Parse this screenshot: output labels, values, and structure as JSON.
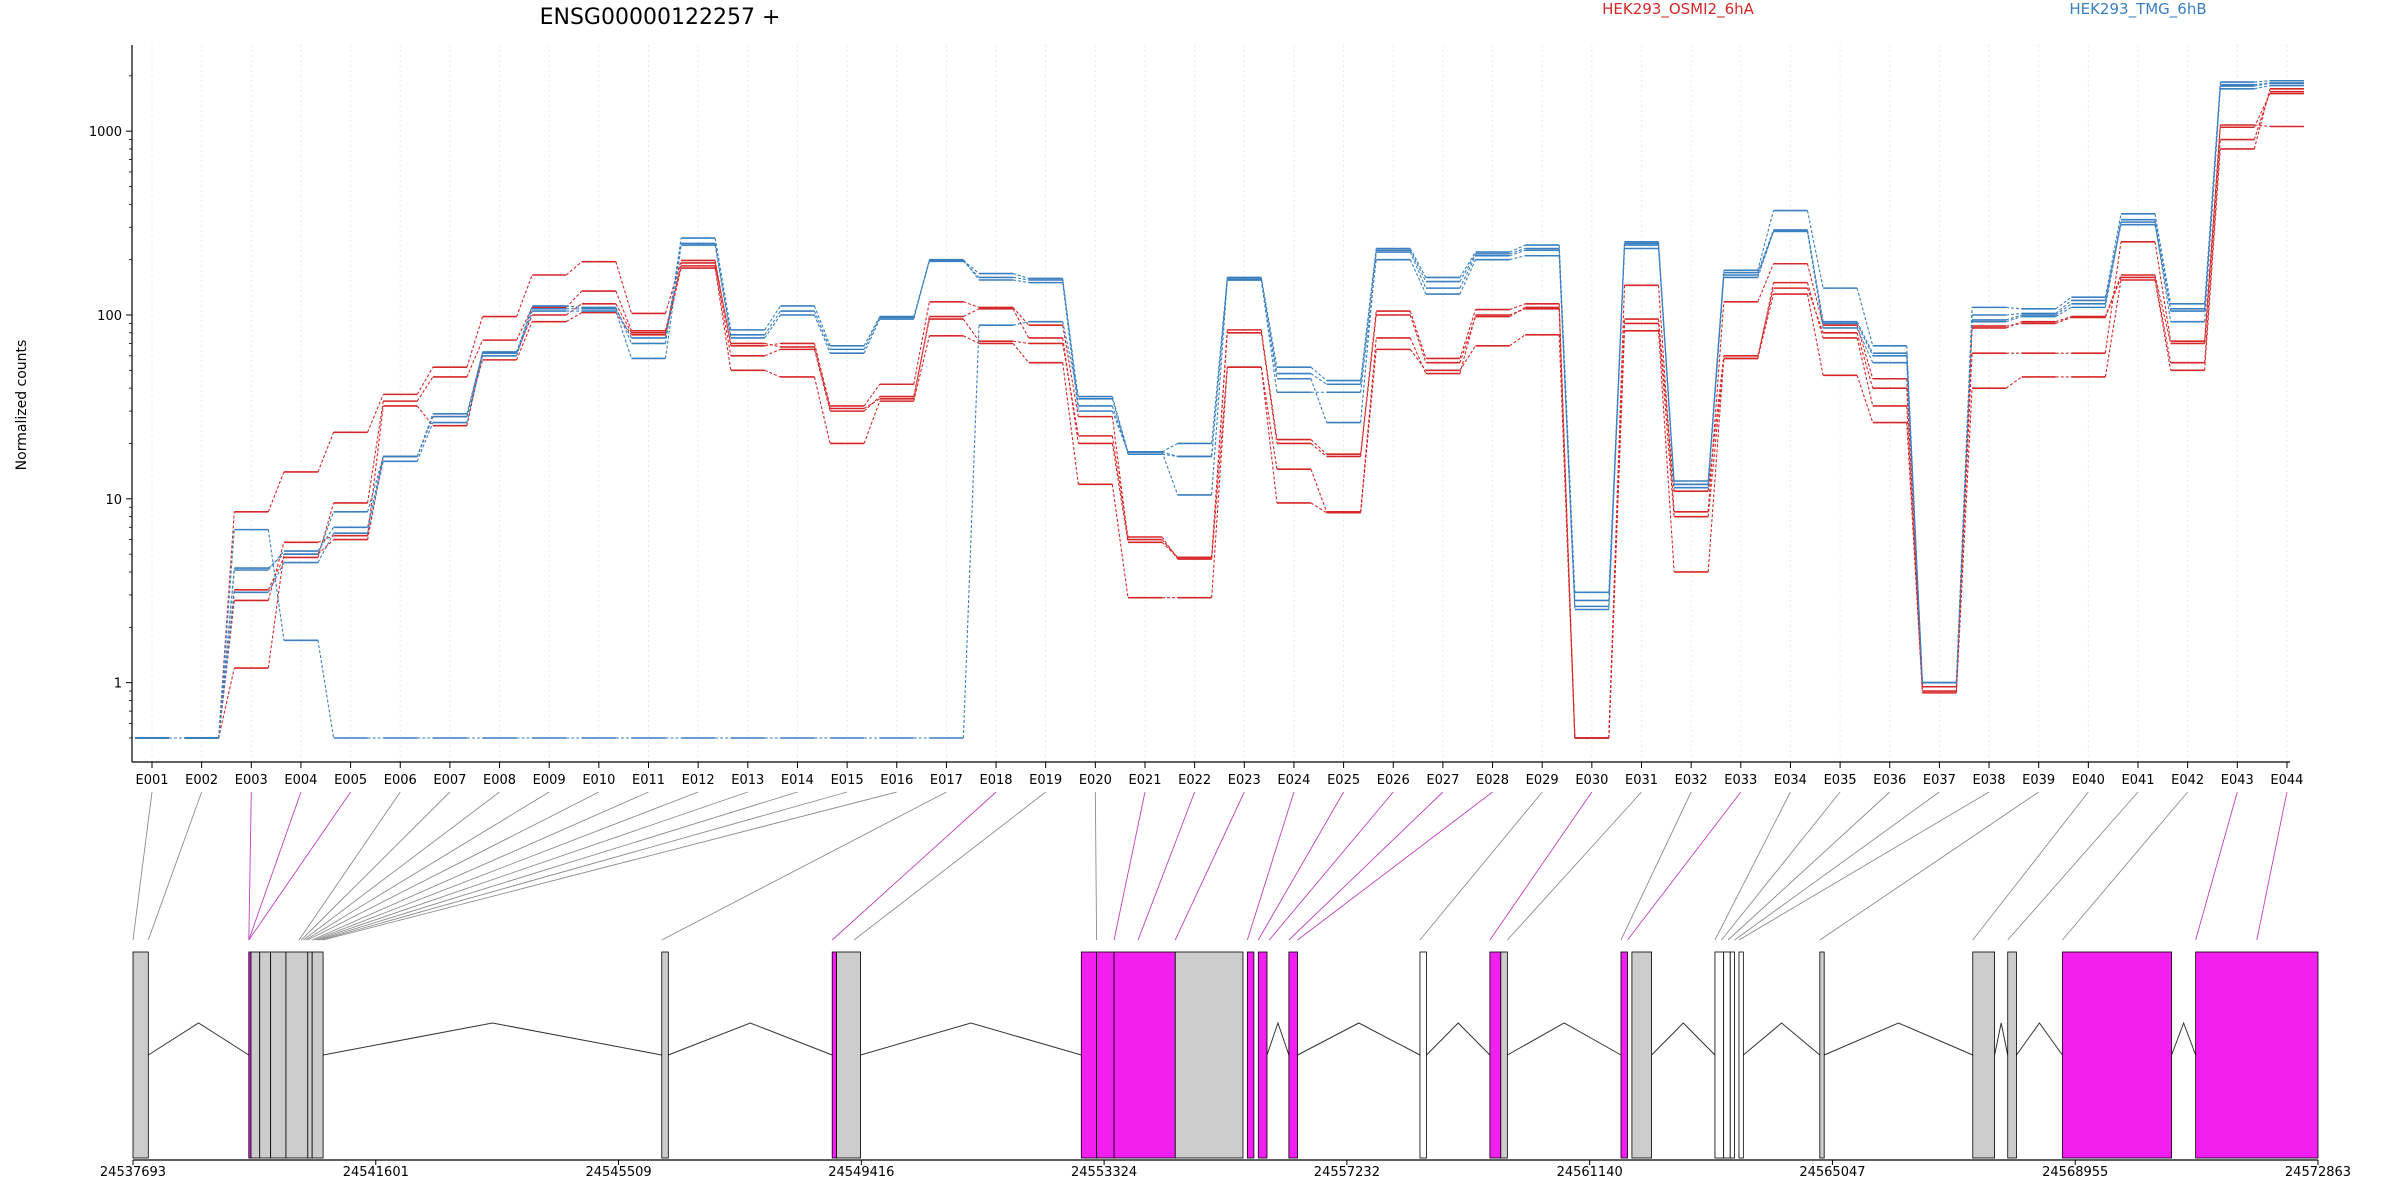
{
  "chart_data": {
    "type": "line",
    "title": "ENSG00000122257 +",
    "ylabel": "Normalized counts",
    "yscale": "log",
    "ylim": [
      0.5,
      2500
    ],
    "yticks": [
      "1",
      "10",
      "100",
      "1000"
    ],
    "yticks_values": [
      1,
      10,
      100,
      1000
    ],
    "grid": "vertical dotted lines at each exon",
    "legend_placement": "top",
    "categories": [
      "E001",
      "E002",
      "E003",
      "E004",
      "E005",
      "E006",
      "E007",
      "E008",
      "E009",
      "E010",
      "E011",
      "E012",
      "E013",
      "E014",
      "E015",
      "E016",
      "E017",
      "E018",
      "E019",
      "E020",
      "E021",
      "E022",
      "E023",
      "E024",
      "E025",
      "E026",
      "E027",
      "E028",
      "E029",
      "E030",
      "E031",
      "E032",
      "E033",
      "E034",
      "E035",
      "E036",
      "E037",
      "E038",
      "E039",
      "E040",
      "E041",
      "E042",
      "E043",
      "E044"
    ],
    "legend": [
      {
        "name": "HEK293_OSMI2_6hA",
        "color": "#d62728"
      },
      {
        "name": "HEK293_TMG_6hB",
        "color": "#3a7fc0"
      }
    ],
    "series": [
      {
        "group": "HEK293_OSMI2_6hA",
        "color": "#d62728",
        "values": [
          0.5,
          0.5,
          8.5,
          14,
          23,
          37,
          52,
          98,
          165,
          195,
          102,
          198,
          68,
          70,
          32,
          42,
          118,
          110,
          88,
          28,
          6,
          4.8,
          83,
          21,
          17.5,
          105,
          58,
          107,
          115,
          0.5,
          145,
          8.5,
          118,
          190,
          88,
          45,
          0.95,
          62,
          62,
          62,
          250,
          72,
          1080,
          1060
        ]
      },
      {
        "group": "HEK293_OSMI2_6hA",
        "color": "#d62728",
        "values": [
          0.5,
          0.5,
          3.2,
          4.8,
          9.5,
          34,
          46,
          73,
          110,
          135,
          82,
          185,
          60,
          65,
          30,
          36,
          95,
          72,
          70,
          22,
          6.2,
          4.7,
          52,
          14.5,
          8.5,
          75,
          48,
          100,
          108,
          0.5,
          95,
          11,
          60,
          140,
          80,
          40,
          0.95,
          87,
          90,
          97,
          160,
          55,
          900,
          1640
        ]
      },
      {
        "group": "HEK293_OSMI2_6hA",
        "color": "#d62728",
        "values": [
          0.5,
          0.5,
          1.2,
          5,
          6,
          17,
          28,
          57,
          92,
          103,
          78,
          180,
          50,
          46,
          20,
          34,
          77,
          70,
          55,
          12,
          2.9,
          2.9,
          52,
          9.5,
          8.4,
          65,
          50,
          68,
          78,
          0.5,
          82,
          4,
          58,
          130,
          47,
          26,
          0.88,
          40,
          46,
          46,
          155,
          50,
          800,
          1700
        ]
      },
      {
        "group": "HEK293_OSMI2_6hA",
        "color": "#d62728",
        "values": [
          0.5,
          0.5,
          2.8,
          5.8,
          6.3,
          32,
          25,
          62,
          100,
          115,
          80,
          192,
          70,
          67,
          31,
          35,
          98,
          108,
          75,
          20,
          5.8,
          4.8,
          80,
          20,
          17,
          100,
          55,
          98,
          110,
          0.5,
          90,
          8,
          58,
          150,
          75,
          32,
          0.9,
          85,
          92,
          98,
          165,
          70,
          1050,
          1600
        ]
      },
      {
        "group": "HEK293_TMG_6hB",
        "color": "#3a7fc0",
        "values": [
          0.5,
          0.5,
          6.8,
          1.7,
          0.5,
          0.5,
          0.5,
          0.5,
          0.5,
          0.5,
          0.5,
          0.5,
          0.5,
          0.5,
          0.5,
          0.5,
          0.5,
          88,
          92,
          36,
          18,
          20,
          160,
          52,
          44,
          230,
          160,
          220,
          240,
          3.1,
          250,
          12.5,
          175,
          370,
          140,
          68,
          1,
          110,
          108,
          125,
          355,
          115,
          1850,
          1880
        ]
      },
      {
        "group": "HEK293_TMG_6hB",
        "color": "#3a7fc0",
        "values": [
          0.5,
          0.5,
          4.2,
          5,
          8.5,
          17,
          29,
          62,
          112,
          110,
          70,
          262,
          83,
          112,
          68,
          98,
          198,
          168,
          158,
          32,
          18,
          17,
          155,
          45,
          26,
          220,
          140,
          210,
          225,
          2.8,
          240,
          12,
          165,
          285,
          90,
          60,
          1,
          100,
          102,
          120,
          310,
          105,
          1760,
          1820
        ]
      },
      {
        "group": "HEK293_TMG_6hB",
        "color": "#3a7fc0",
        "values": [
          0.5,
          0.5,
          3.1,
          4.5,
          6.5,
          16,
          26,
          60,
          105,
          105,
          58,
          240,
          75,
          100,
          62,
          95,
          200,
          155,
          150,
          30,
          18,
          10.5,
          155,
          38,
          38,
          200,
          130,
          200,
          210,
          2.5,
          230,
          11.5,
          160,
          285,
          85,
          55,
          1,
          92,
          98,
          110,
          320,
          92,
          1700,
          1770
        ]
      },
      {
        "group": "HEK293_TMG_6hB",
        "color": "#3a7fc0",
        "values": [
          0.5,
          0.5,
          4.1,
          5.2,
          7,
          17,
          28,
          63,
          108,
          108,
          75,
          245,
          78,
          105,
          65,
          97,
          196,
          160,
          155,
          35,
          17.5,
          17,
          157,
          48,
          42,
          225,
          152,
          215,
          230,
          2.6,
          245,
          12,
          170,
          290,
          92,
          62,
          1,
          94,
          100,
          115,
          330,
          108,
          1790,
          1830
        ]
      }
    ],
    "gene_model": {
      "x_ticks": [
        "24537693",
        "24541601",
        "24545509",
        "24549416",
        "24553324",
        "24557232",
        "24561140",
        "24565047",
        "24568955",
        "24572863"
      ],
      "x_range": [
        24537693,
        24572863
      ],
      "exon_colors": {
        "normal": "#cccccc",
        "highlighted": "#f21ff0",
        "outline": "#000000"
      }
    }
  }
}
